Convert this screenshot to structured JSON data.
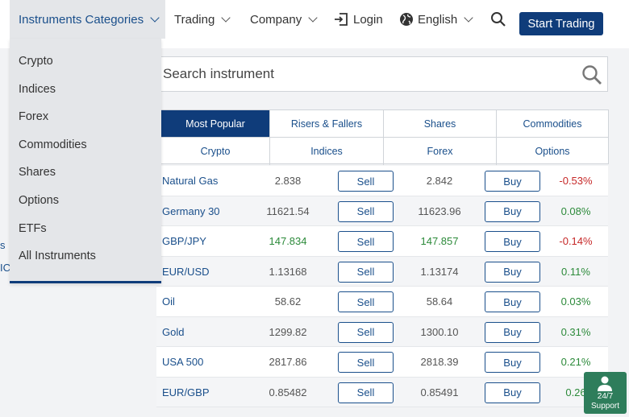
{
  "nav": {
    "categories_label": "Instruments Categories",
    "trading_label": "Trading",
    "company_label": "Company",
    "login_label": "Login",
    "language_label": "English",
    "start_button": "Start Trading"
  },
  "edge_glyphs": [
    "s",
    "IC"
  ],
  "dropdown": {
    "items": [
      "Crypto",
      "Indices",
      "Forex",
      "Commodities",
      "Shares",
      "Options",
      "ETFs",
      "All Instruments"
    ]
  },
  "search": {
    "placeholder": "Search instrument"
  },
  "tabs": {
    "row1": [
      "Most Popular",
      "Risers & Fallers",
      "Shares",
      "Commodities"
    ],
    "row2": [
      "Crypto",
      "Indices",
      "Forex",
      "Options"
    ]
  },
  "table": {
    "sell_label": "Sell",
    "buy_label": "Buy",
    "rows": [
      {
        "name": "Natural Gas",
        "sell": "2.838",
        "buy": "2.842",
        "change": "-0.53%"
      },
      {
        "name": "Germany 30",
        "sell": "11621.54",
        "buy": "11623.96",
        "change": "0.08%"
      },
      {
        "name": "GBP/JPY",
        "sell": "147.834",
        "buy": "147.857",
        "change": "-0.14%"
      },
      {
        "name": "EUR/USD",
        "sell": "1.13168",
        "buy": "1.13174",
        "change": "0.11%"
      },
      {
        "name": "Oil",
        "sell": "58.62",
        "buy": "58.64",
        "change": "0.03%"
      },
      {
        "name": "Gold",
        "sell": "1299.82",
        "buy": "1300.10",
        "change": "0.31%"
      },
      {
        "name": "USA 500",
        "sell": "2817.86",
        "buy": "2818.39",
        "change": "0.21%"
      },
      {
        "name": "EUR/GBP",
        "sell": "0.85482",
        "buy": "0.85491",
        "change": "0.26"
      }
    ]
  },
  "support": {
    "line1": "24/7",
    "line2": "Support"
  },
  "colors": {
    "brand": "#0f3c7a",
    "link": "#1a4f8b",
    "positive": "#2c8a3a",
    "negative": "#c62828",
    "support": "#2e7d5b"
  }
}
